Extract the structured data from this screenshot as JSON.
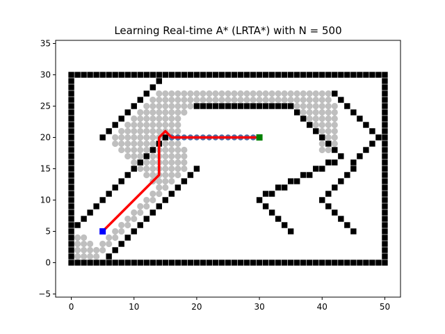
{
  "chart_data": {
    "type": "scatter",
    "title": "Learning Real-time A* (LRTA*) with N = 500",
    "xlabel": "",
    "ylabel": "",
    "xlim": [
      -2.5,
      52.5
    ],
    "ylim": [
      -5.5,
      35.5
    ],
    "x_ticks": [
      0,
      10,
      20,
      30,
      40,
      50
    ],
    "y_ticks": [
      -5,
      0,
      5,
      10,
      15,
      20,
      25,
      30,
      35
    ],
    "grid": false,
    "start": [
      5,
      5
    ],
    "goal": [
      30,
      20
    ],
    "obstacles": {
      "boundary": {
        "xmin": 0,
        "xmax": 50,
        "ymin": 0,
        "ymax": 30
      },
      "segments": [
        {
          "from": [
            1,
            6
          ],
          "to": [
            15,
            20
          ]
        },
        {
          "from": [
            6,
            1
          ],
          "to": [
            20,
            15
          ]
        },
        {
          "from": [
            5,
            20
          ],
          "to": [
            14,
            29
          ]
        },
        {
          "from": [
            20,
            25
          ],
          "to": [
            35,
            25
          ]
        },
        {
          "from": [
            35,
            25
          ],
          "to": [
            43,
            17
          ]
        },
        {
          "from": [
            43,
            17
          ],
          "to": [
            30,
            10
          ]
        },
        {
          "from": [
            30,
            10
          ],
          "to": [
            35,
            5
          ]
        },
        {
          "from": [
            42,
            27
          ],
          "to": [
            49,
            20
          ]
        },
        {
          "from": [
            49,
            20
          ],
          "to": [
            40,
            10
          ]
        },
        {
          "from": [
            40,
            10
          ],
          "to": [
            45,
            5
          ]
        }
      ]
    },
    "explored_region": {
      "comment": "grey visited cells",
      "polygon": [
        [
          1,
          1
        ],
        [
          5,
          1
        ],
        [
          19,
          15
        ],
        [
          17,
          23
        ],
        [
          20,
          25
        ],
        [
          36,
          25
        ],
        [
          40,
          21
        ],
        [
          40,
          18
        ],
        [
          42,
          18
        ],
        [
          43,
          20
        ],
        [
          43,
          24
        ],
        [
          41,
          28
        ],
        [
          14,
          28
        ],
        [
          6,
          20
        ],
        [
          14,
          12
        ],
        [
          4,
          3
        ],
        [
          1,
          5
        ]
      ]
    },
    "path": {
      "color": "#ff0000",
      "points": [
        [
          5,
          5
        ],
        [
          14,
          14
        ],
        [
          14,
          20
        ],
        [
          15,
          21
        ],
        [
          16,
          20
        ],
        [
          30,
          20
        ]
      ]
    },
    "series": [
      {
        "name": "",
        "marker": "square",
        "color": "#000000",
        "role": "obstacles"
      },
      {
        "name": "",
        "marker": "circle",
        "color": "#bfbfbf",
        "role": "visited"
      },
      {
        "name": "",
        "marker": "circle",
        "color": "#4a6fa5",
        "role": "current-frontier",
        "x": [
          16,
          17,
          18,
          19,
          20,
          21,
          22,
          23,
          24,
          25,
          26,
          27,
          28,
          29
        ],
        "y": [
          20,
          20,
          20,
          20,
          20,
          20,
          20,
          20,
          20,
          20,
          20,
          20,
          20,
          20
        ]
      }
    ],
    "colors": {
      "start": "#0000ff",
      "goal": "#008000",
      "obstacle": "#000000",
      "visited": "#bfbfbf",
      "path": "#ff0000"
    }
  }
}
